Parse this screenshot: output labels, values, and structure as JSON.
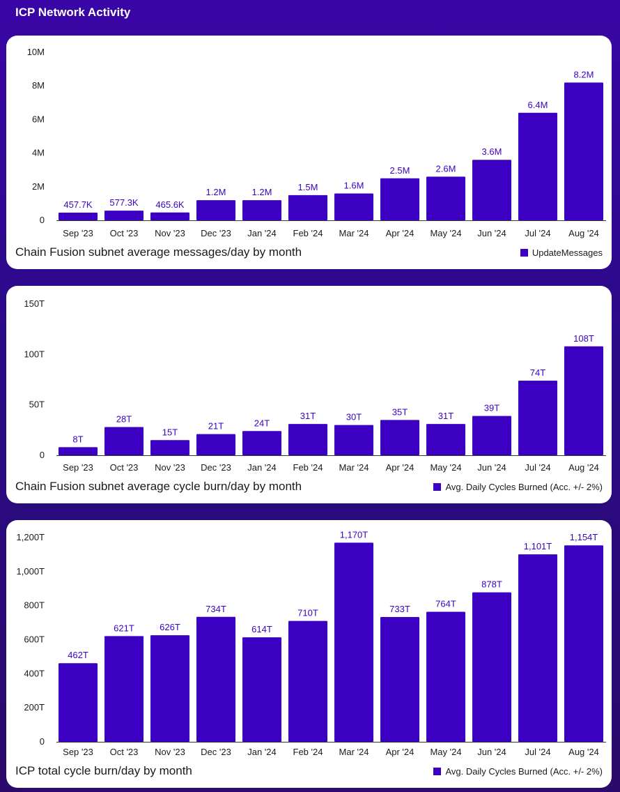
{
  "page": {
    "title": "ICP Network Activity"
  },
  "colors": {
    "bar": "#3b00c2",
    "value_label": "#3b00c2",
    "text": "#1a1a1a",
    "background": "#2f0896"
  },
  "chart_data": [
    {
      "type": "bar",
      "title": "Chain Fusion subnet average messages/day by month",
      "categories": [
        "Sep '23",
        "Oct '23",
        "Nov '23",
        "Dec '23",
        "Jan '24",
        "Feb '24",
        "Mar '24",
        "Apr '24",
        "May '24",
        "Jun '24",
        "Jul '24",
        "Aug '24"
      ],
      "series": [
        {
          "name": "UpdateMessages",
          "values": [
            457700,
            577300,
            465600,
            1200000,
            1200000,
            1500000,
            1600000,
            2500000,
            2600000,
            3600000,
            6400000,
            8200000
          ],
          "labels": [
            "457.7K",
            "577.3K",
            "465.6K",
            "1.2M",
            "1.2M",
            "1.5M",
            "1.6M",
            "2.5M",
            "2.6M",
            "3.6M",
            "6.4M",
            "8.2M"
          ]
        }
      ],
      "ylim": [
        0,
        10000000
      ],
      "yticks": [
        0,
        2000000,
        4000000,
        6000000,
        8000000,
        10000000
      ],
      "ytick_labels": [
        "0",
        "2M",
        "4M",
        "6M",
        "8M",
        "10M"
      ],
      "legend": "bottom-right",
      "grid": false
    },
    {
      "type": "bar",
      "title": "Chain Fusion subnet average cycle burn/day by month",
      "categories": [
        "Sep '23",
        "Oct '23",
        "Nov '23",
        "Dec '23",
        "Jan '24",
        "Feb '24",
        "Mar '24",
        "Apr '24",
        "May '24",
        "Jun '24",
        "Jul '24",
        "Aug '24"
      ],
      "series": [
        {
          "name": "Avg. Daily Cycles Burned (Acc. +/- 2%)",
          "values": [
            8,
            28,
            15,
            21,
            24,
            31,
            30,
            35,
            31,
            39,
            74,
            108
          ],
          "labels": [
            "8T",
            "28T",
            "15T",
            "21T",
            "24T",
            "31T",
            "30T",
            "35T",
            "31T",
            "39T",
            "74T",
            "108T"
          ]
        }
      ],
      "ylim": [
        0,
        150
      ],
      "yticks": [
        0,
        50,
        100,
        150
      ],
      "ytick_labels": [
        "0",
        "50T",
        "100T",
        "150T"
      ],
      "legend": "bottom-right",
      "grid": false
    },
    {
      "type": "bar",
      "title": "ICP total cycle burn/day by month",
      "categories": [
        "Sep '23",
        "Oct '23",
        "Nov '23",
        "Dec '23",
        "Jan '24",
        "Feb '24",
        "Mar '24",
        "Apr '24",
        "May '24",
        "Jun '24",
        "Jul '24",
        "Aug '24"
      ],
      "series": [
        {
          "name": "Avg. Daily Cycles Burned (Acc. +/- 2%)",
          "values": [
            462,
            621,
            626,
            734,
            614,
            710,
            1170,
            733,
            764,
            878,
            1101,
            1154
          ],
          "labels": [
            "462T",
            "621T",
            "626T",
            "734T",
            "614T",
            "710T",
            "1,170T",
            "733T",
            "764T",
            "878T",
            "1,101T",
            "1,154T"
          ]
        }
      ],
      "ylim": [
        0,
        1200
      ],
      "yticks": [
        0,
        200,
        400,
        600,
        800,
        1000,
        1200
      ],
      "ytick_labels": [
        "0",
        "200T",
        "400T",
        "600T",
        "800T",
        "1,000T",
        "1,200T"
      ],
      "legend": "bottom-right",
      "grid": false
    }
  ]
}
